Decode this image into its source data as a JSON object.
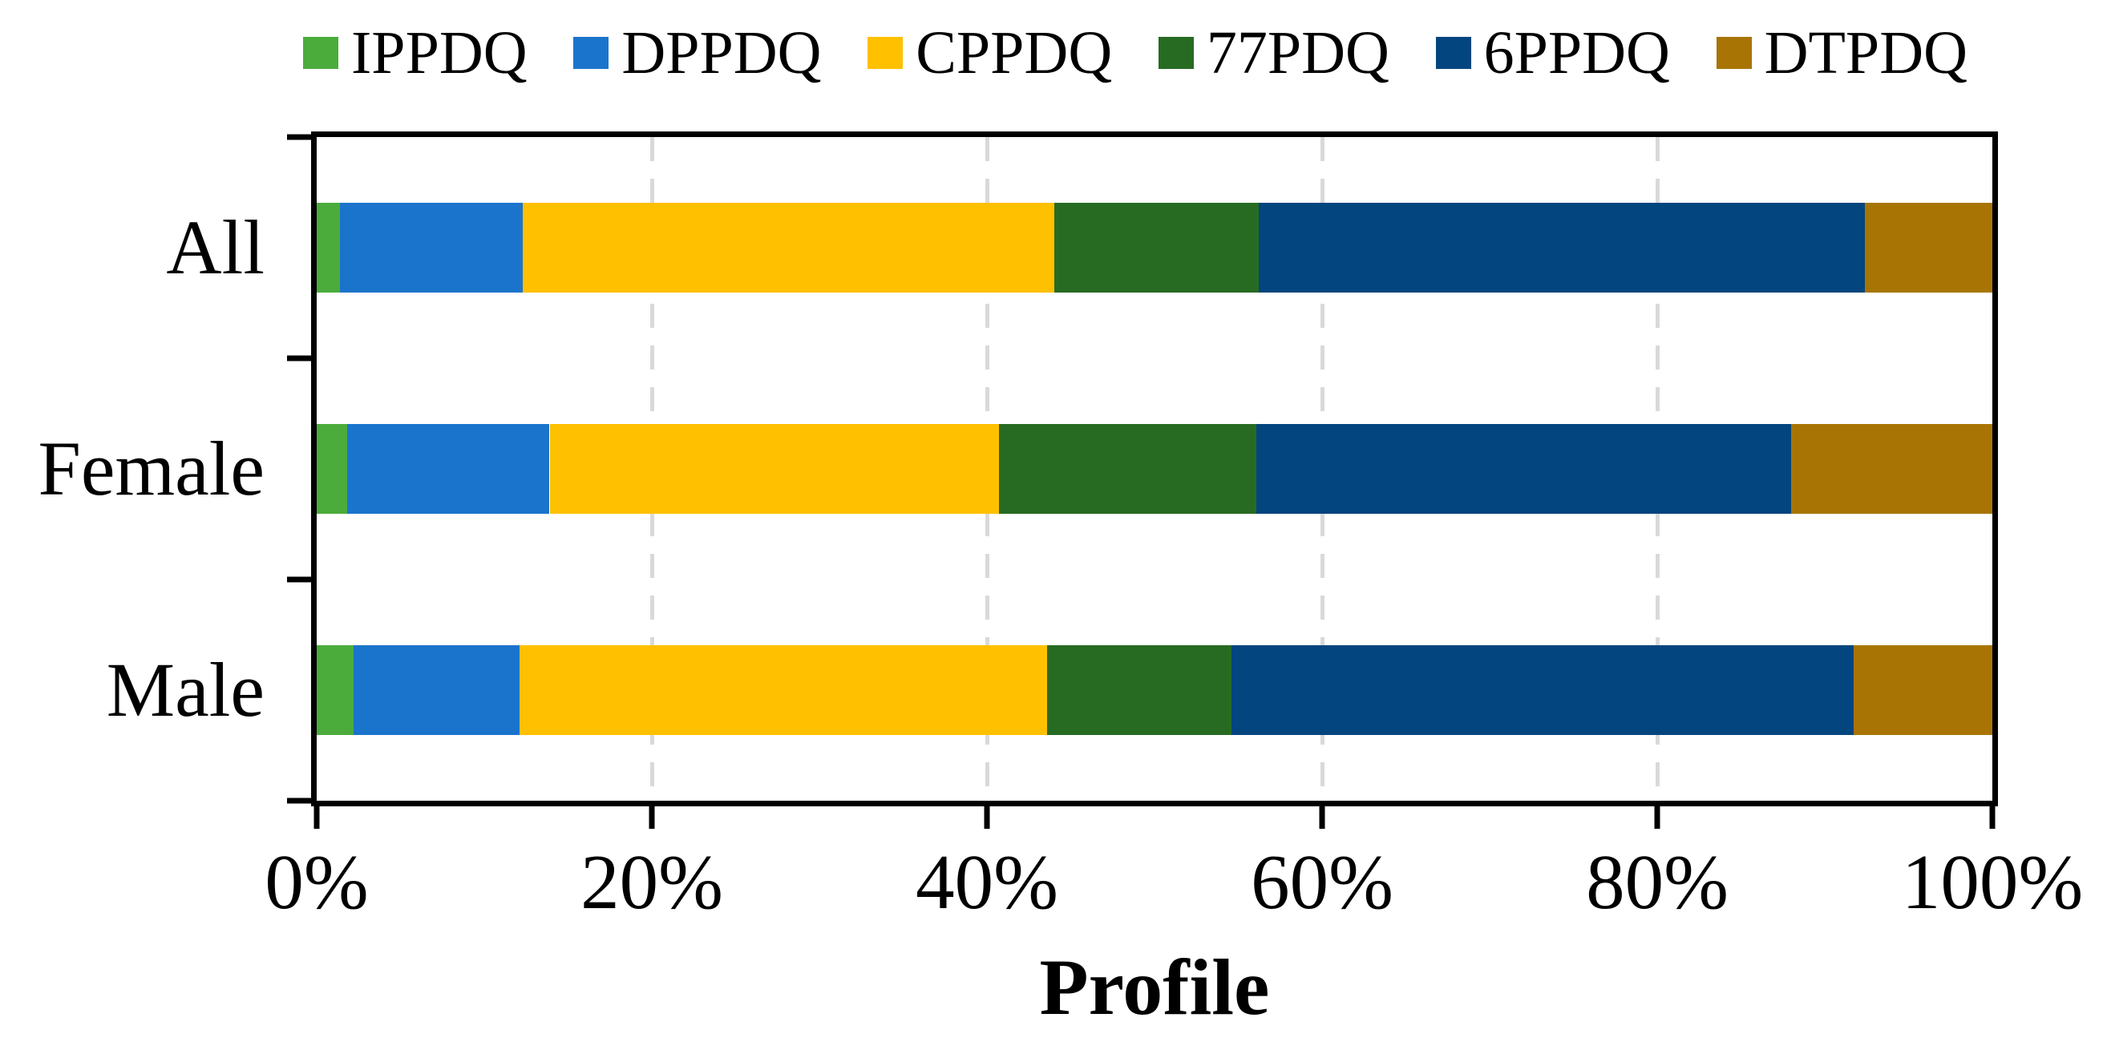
{
  "chart_data": {
    "type": "bar",
    "orientation": "horizontal",
    "stacked": true,
    "units": "percent",
    "title": "",
    "xlabel": "Profile",
    "ylabel": "",
    "xlim": [
      0,
      100
    ],
    "x_ticks": [
      "0%",
      "20%",
      "40%",
      "60%",
      "80%",
      "100%"
    ],
    "x_tick_values": [
      0,
      20,
      40,
      60,
      80,
      100
    ],
    "gridline_positions": [
      20,
      40,
      60,
      80
    ],
    "grid": "vertical-dashed",
    "legend_position": "top",
    "categories": [
      "All",
      "Female",
      "Male"
    ],
    "series": [
      {
        "name": "IPPDQ",
        "color": "#4BAC3C",
        "values": [
          1.4,
          1.8,
          2.2
        ]
      },
      {
        "name": "DPPDQ",
        "color": "#1B74CB",
        "values": [
          10.9,
          12.1,
          9.9
        ]
      },
      {
        "name": "CPPDQ",
        "color": "#FFC000",
        "values": [
          31.7,
          26.8,
          31.5
        ]
      },
      {
        "name": "77PDQ",
        "color": "#276B23",
        "values": [
          12.2,
          15.4,
          11.0
        ]
      },
      {
        "name": "6PPDQ",
        "color": "#03457E",
        "values": [
          36.2,
          31.9,
          37.1
        ]
      },
      {
        "name": "DTPDQ",
        "color": "#A87504",
        "values": [
          7.6,
          12.0,
          8.3
        ]
      }
    ],
    "colors": {
      "axis": "#000000",
      "gridline": "#D9D9D9",
      "background": "#FFFFFF",
      "text": "#000000"
    }
  }
}
